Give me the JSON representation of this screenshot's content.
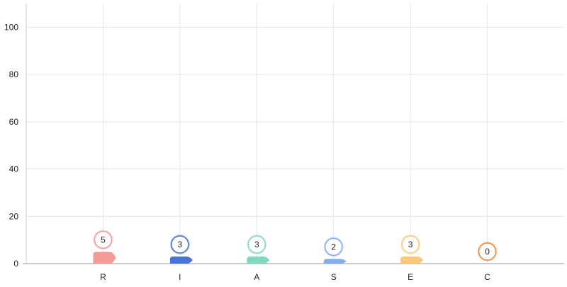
{
  "chart_data": {
    "type": "bar",
    "categories": [
      "R",
      "I",
      "A",
      "S",
      "E",
      "C"
    ],
    "values": [
      5,
      3,
      3,
      2,
      3,
      0
    ],
    "ylim": [
      0,
      110
    ],
    "yticks": [
      0,
      20,
      40,
      60,
      80,
      100
    ],
    "grid": true,
    "colors": [
      "#f39b97",
      "#4a74d4",
      "#7fd8c0",
      "#86acf0",
      "#fcc878",
      "#f08a3c"
    ],
    "label_style": "circle-bubble"
  }
}
